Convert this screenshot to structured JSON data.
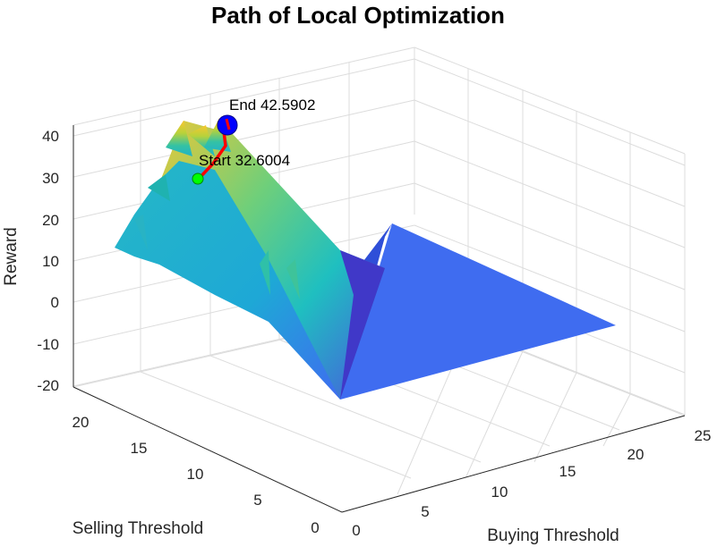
{
  "chart_data": {
    "type": "surface",
    "title": "Path of Local Optimization",
    "xlabel": "Buying Threshold",
    "ylabel": "Selling Threshold",
    "zlabel": "Reward",
    "xlim": [
      0,
      25
    ],
    "ylim": [
      0,
      22
    ],
    "zlim": [
      -20,
      45
    ],
    "xticks": [
      "0",
      "5",
      "10",
      "15",
      "20",
      "25"
    ],
    "yticks": [
      "0",
      "5",
      "10",
      "15",
      "20"
    ],
    "zticks": [
      "-20",
      "-10",
      "0",
      "10",
      "20",
      "30",
      "40"
    ],
    "grid": true,
    "path": [
      {
        "x": 2,
        "y": 16,
        "z": 32.6004
      },
      {
        "x": 3,
        "y": 18,
        "z": 37.5
      },
      {
        "x": 3,
        "y": 19,
        "z": 40.5
      },
      {
        "x": 2,
        "y": 20,
        "z": 42.5902
      }
    ],
    "annotations": {
      "start": "Start 32.6004",
      "end": "End 42.5902"
    },
    "colors": {
      "surface_low": "#3d5cf5",
      "surface_mid": "#1fbfb8",
      "surface_high": "#f9c630",
      "path": "#ff0000",
      "start_marker": "#00ff00",
      "end_marker": "#0000ff"
    }
  }
}
